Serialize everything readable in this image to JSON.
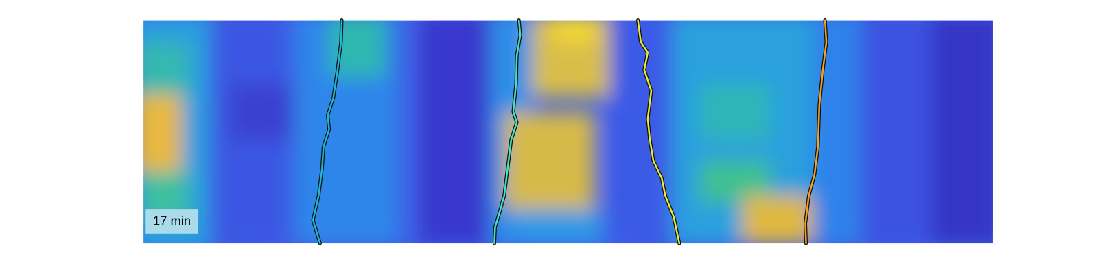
{
  "label": "17 min"
}
